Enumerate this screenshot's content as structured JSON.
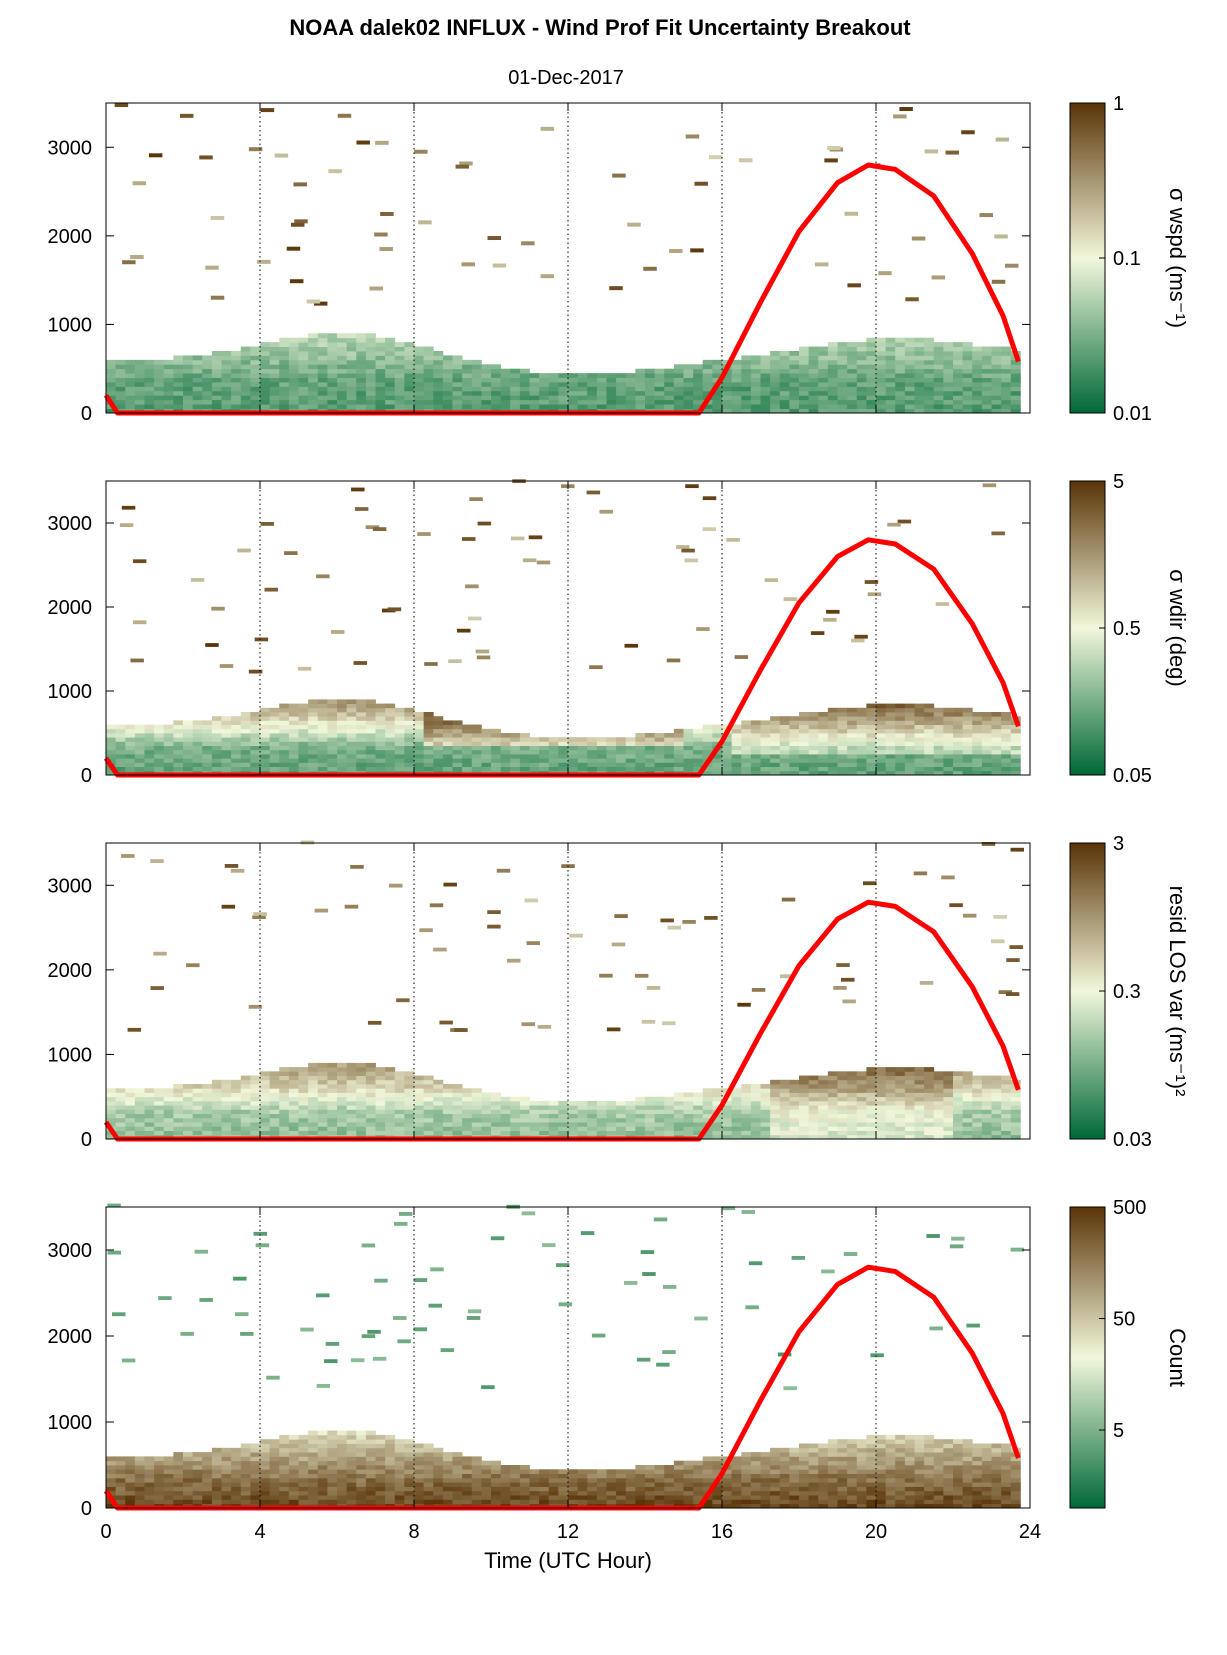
{
  "title": "NOAA dalek02 INFLUX - Wind Prof Fit Uncertainty Breakout",
  "subtitle": "01-Dec-2017",
  "colors": {
    "curve": "#ff0000",
    "low": "#006837",
    "mid": "#f2f7da",
    "high": "#5a3408",
    "grid": "#000000"
  },
  "chart_data": [
    {
      "type": "heatmap",
      "xlabel": "",
      "ylabel": "",
      "xlim": [
        0,
        24
      ],
      "ylim": [
        0,
        3500
      ],
      "xticks": [
        0,
        4,
        8,
        12,
        16,
        20,
        24
      ],
      "yticks": [
        "0",
        "1000",
        "2000",
        "3000"
      ],
      "ytick_values": [
        0,
        1000,
        2000,
        3000
      ],
      "colorbar": {
        "label": "σ wspd (ms⁻¹)",
        "scale": "log",
        "range": [
          0.01,
          1
        ],
        "ticks": [
          "0.01",
          "0.1",
          "1"
        ]
      },
      "cell_level_by_height": [
        [
          0,
          0.18
        ],
        [
          300,
          0.2
        ],
        [
          600,
          0.3
        ],
        [
          900,
          0.4
        ],
        [
          1100,
          0.55
        ]
      ],
      "solar_elevation_curve": [
        [
          0,
          200
        ],
        [
          0.3,
          0
        ],
        [
          15.4,
          0
        ],
        [
          16,
          400
        ],
        [
          17,
          1250
        ],
        [
          18,
          2050
        ],
        [
          19,
          2600
        ],
        [
          19.8,
          2800
        ],
        [
          20.5,
          2750
        ],
        [
          21.5,
          2450
        ],
        [
          22.5,
          1800
        ],
        [
          23.3,
          1100
        ],
        [
          23.7,
          580
        ]
      ]
    },
    {
      "type": "heatmap",
      "xlabel": "",
      "ylabel": "",
      "xlim": [
        0,
        24
      ],
      "ylim": [
        0,
        3500
      ],
      "xticks": [
        0,
        4,
        8,
        12,
        16,
        20,
        24
      ],
      "yticks": [
        "0",
        "1000",
        "2000",
        "3000"
      ],
      "ytick_values": [
        0,
        1000,
        2000,
        3000
      ],
      "colorbar": {
        "label": "σ wdir (deg)",
        "scale": "log",
        "range": [
          0.05,
          5
        ],
        "ticks": [
          "0.05",
          "0.5",
          "5"
        ]
      },
      "cell_level_by_height": [
        [
          0,
          0.2
        ],
        [
          300,
          0.25
        ],
        [
          600,
          0.55
        ],
        [
          900,
          0.8
        ],
        [
          1100,
          0.9
        ]
      ],
      "solar_elevation_curve": [
        [
          0,
          200
        ],
        [
          0.3,
          0
        ],
        [
          15.4,
          0
        ],
        [
          16,
          400
        ],
        [
          17,
          1250
        ],
        [
          18,
          2050
        ],
        [
          19,
          2600
        ],
        [
          19.8,
          2800
        ],
        [
          20.5,
          2750
        ],
        [
          21.5,
          2450
        ],
        [
          22.5,
          1800
        ],
        [
          23.3,
          1100
        ],
        [
          23.7,
          580
        ]
      ]
    },
    {
      "type": "heatmap",
      "xlabel": "",
      "ylabel": "",
      "xlim": [
        0,
        24
      ],
      "ylim": [
        0,
        3500
      ],
      "xticks": [
        0,
        4,
        8,
        12,
        16,
        20,
        24
      ],
      "yticks": [
        "0",
        "1000",
        "2000",
        "3000"
      ],
      "ytick_values": [
        0,
        1000,
        2000,
        3000
      ],
      "colorbar": {
        "label": "resid LOS var (ms⁻¹)²",
        "scale": "log",
        "range": [
          0.03,
          3
        ],
        "ticks": [
          "0.03",
          "0.3",
          "3"
        ]
      },
      "cell_level_by_height": [
        [
          0,
          0.3
        ],
        [
          300,
          0.35
        ],
        [
          600,
          0.6
        ],
        [
          900,
          0.75
        ],
        [
          1100,
          0.9
        ]
      ],
      "solar_elevation_curve": [
        [
          0,
          200
        ],
        [
          0.3,
          0
        ],
        [
          15.4,
          0
        ],
        [
          16,
          400
        ],
        [
          17,
          1250
        ],
        [
          18,
          2050
        ],
        [
          19,
          2600
        ],
        [
          19.8,
          2800
        ],
        [
          20.5,
          2750
        ],
        [
          21.5,
          2450
        ],
        [
          22.5,
          1800
        ],
        [
          23.3,
          1100
        ],
        [
          23.7,
          580
        ]
      ]
    },
    {
      "type": "heatmap",
      "xlabel": "Time (UTC Hour)",
      "ylabel": "",
      "xlim": [
        0,
        24
      ],
      "ylim": [
        0,
        3500
      ],
      "xticks": [
        0,
        4,
        8,
        12,
        16,
        20,
        24
      ],
      "yticks": [
        "0",
        "1000",
        "2000",
        "3000"
      ],
      "ytick_values": [
        0,
        1000,
        2000,
        3000
      ],
      "colorbar": {
        "label": "Count",
        "scale": "log",
        "range": [
          1,
          500
        ],
        "ticks": [
          "5",
          "50",
          "500"
        ]
      },
      "cell_level_by_height": [
        [
          0,
          0.95
        ],
        [
          300,
          0.85
        ],
        [
          600,
          0.7
        ],
        [
          900,
          0.55
        ],
        [
          1100,
          0.45
        ]
      ],
      "solar_elevation_curve": [
        [
          0,
          200
        ],
        [
          0.3,
          0
        ],
        [
          15.4,
          0
        ],
        [
          16,
          400
        ],
        [
          17,
          1250
        ],
        [
          18,
          2050
        ],
        [
          19,
          2600
        ],
        [
          19.8,
          2800
        ],
        [
          20.5,
          2750
        ],
        [
          21.5,
          2450
        ],
        [
          22.5,
          1800
        ],
        [
          23.3,
          1100
        ],
        [
          23.7,
          580
        ]
      ]
    }
  ]
}
